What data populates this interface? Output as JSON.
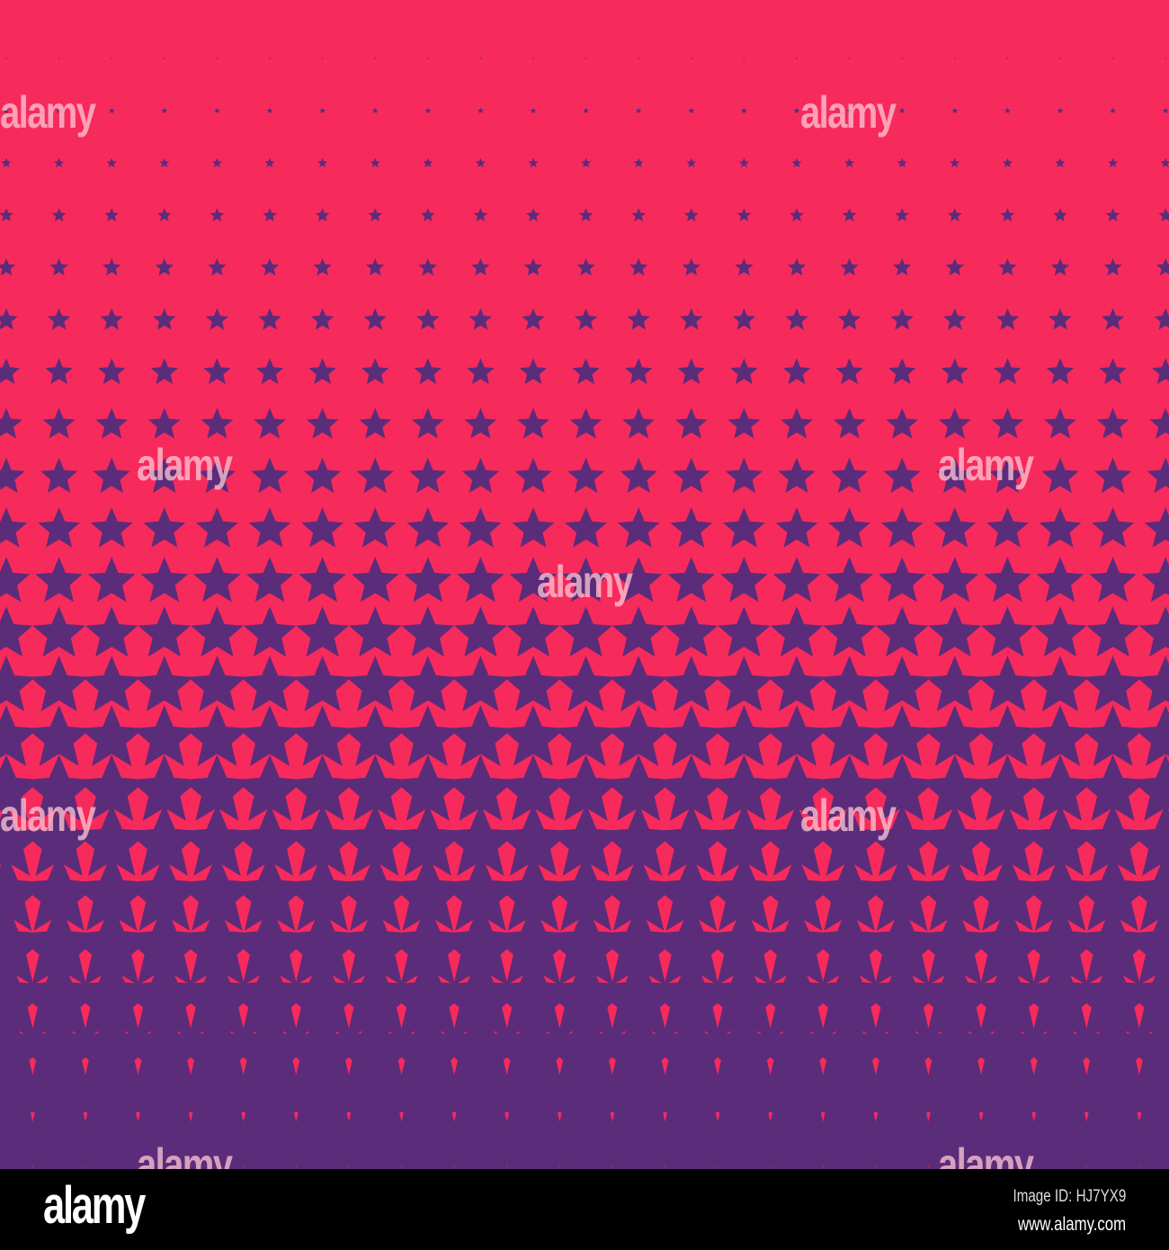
{
  "colors": {
    "background": "#F72A5C",
    "star": "#5B2C7A",
    "footer": "#000000"
  },
  "pattern": {
    "shape": "star-icon",
    "rows": 22,
    "columns": 23
  },
  "watermark": {
    "text": "alamy"
  },
  "footer": {
    "logo": "alamy",
    "image_id": "Image ID: HJ7YX9",
    "url": "www.alamy.com"
  }
}
